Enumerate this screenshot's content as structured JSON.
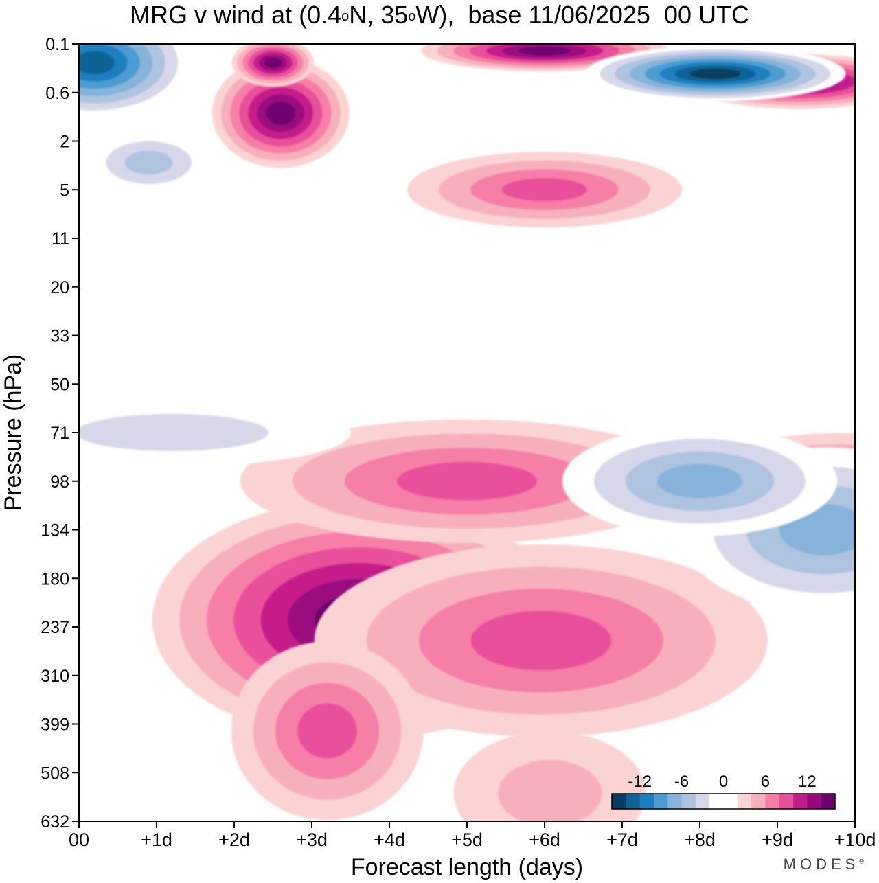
{
  "title": {
    "prefix": "MRG v wind at (0.4",
    "deg1": "o",
    "middle": "N, 35",
    "deg2": "o",
    "suffix": "W),  base 11/06/2025  00 UTC"
  },
  "brand": {
    "name": "MODES",
    "mark": "®"
  },
  "chart_data": {
    "type": "heatmap",
    "title": "MRG v wind at (0.4°N, 35°W),  base 11/06/2025  00 UTC",
    "xlabel": "Forecast length (days)",
    "ylabel": "Pressure (hPa)",
    "x_ticks": [
      "00",
      "+1d",
      "+2d",
      "+3d",
      "+4d",
      "+5d",
      "+6d",
      "+7d",
      "+8d",
      "+9d",
      "+10d"
    ],
    "x_range_days": [
      0,
      10
    ],
    "y_ticks": [
      "0.1",
      "0.6",
      "2",
      "5",
      "11",
      "20",
      "33",
      "50",
      "71",
      "98",
      "134",
      "180",
      "237",
      "310",
      "399",
      "508",
      "632"
    ],
    "colorbar": {
      "tick_labels": [
        "-12",
        "-6",
        "0",
        "6",
        "12"
      ],
      "levels": [
        -16,
        -14,
        -12,
        -10,
        -8,
        -6,
        -4,
        -2,
        0,
        2,
        4,
        6,
        8,
        10,
        12,
        14,
        16
      ],
      "colors": [
        "#0b3c5d",
        "#0f6394",
        "#1b7fbf",
        "#4b9cd0",
        "#86b3d9",
        "#adc3e0",
        "#d6d8ea",
        "#ffffff",
        "#ffffff",
        "#fbd3d3",
        "#f7b0bb",
        "#f57fa7",
        "#e94f9a",
        "#c51b8a",
        "#9b077f",
        "#6e0070"
      ]
    },
    "features": [
      {
        "type": "max",
        "day": 3.6,
        "level": 237,
        "value": 16
      },
      {
        "type": "max",
        "day": 5.6,
        "level": 237,
        "value": 10
      },
      {
        "type": "max",
        "day": 3.2,
        "level": 399,
        "value": 10
      },
      {
        "type": "max",
        "day": 6.6,
        "level": 508,
        "value": 6
      },
      {
        "type": "max",
        "day": 5.0,
        "level": 98,
        "value": 9
      },
      {
        "type": "max",
        "day": 9.8,
        "level": 98,
        "value": 9
      },
      {
        "type": "min",
        "day": 9.6,
        "level": 134,
        "value": -8
      },
      {
        "type": "min",
        "day": 8.0,
        "level": 98,
        "value": -7
      },
      {
        "type": "min",
        "day": 1.2,
        "level": 71,
        "value": -4
      },
      {
        "type": "max",
        "day": 2.6,
        "level": 0.6,
        "value": 16
      },
      {
        "type": "max",
        "day": 2.5,
        "level": 0.2,
        "value": 16
      },
      {
        "type": "max",
        "day": 6.0,
        "level": 0.1,
        "value": 16
      },
      {
        "type": "max",
        "day": 9.3,
        "level": 0.4,
        "value": 16
      },
      {
        "type": "min",
        "day": 0.2,
        "level": 0.2,
        "value": -14
      },
      {
        "type": "min",
        "day": 8.2,
        "level": 0.3,
        "value": -16
      },
      {
        "type": "max",
        "day": 6.0,
        "level": 5,
        "value": 9
      },
      {
        "type": "min",
        "day": 0.9,
        "level": 3,
        "value": -6
      }
    ]
  }
}
